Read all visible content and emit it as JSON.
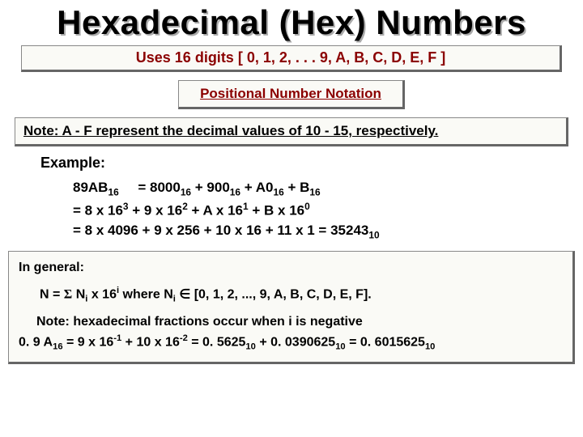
{
  "title": "Hexadecimal (Hex) Numbers",
  "uses_line": "Uses 16 digits [ 0, 1, 2, . . . 9, A, B, C, D, E, F ]",
  "positional": "Positional Number Notation",
  "note_af": "Note: A - F represent the decimal values of 10 - 15, respectively.",
  "example_label": "Example:",
  "ex": {
    "a": "89AB",
    "a_sub": "16",
    "eq": " = 8000",
    "eq_s1": "16",
    "eq2": " + 900",
    "eq_s2": "16",
    "eq3": " + A0",
    "eq_s3": "16",
    "eq4": " + B",
    "eq_s4": "16",
    "l2a": "= 8 x 16",
    "l2p1": "3",
    "l2b": " + 9 x 16",
    "l2p2": "2",
    "l2c": " + A x 16",
    "l2p3": "1",
    "l2d": " + B x 16",
    "l2p4": "0",
    "l3": "= 8 x 4096 + 9 x 256 + 10 x 16 + 11 x 1 = 35243",
    "l3s": "10"
  },
  "ingeneral": "In general:",
  "formula": {
    "a": "N = ",
    "sigma": "Σ",
    "b": " N",
    "sub_i": "i",
    "c": " x 16",
    "sup_i": "i",
    "where": "   where N",
    "elem": " ∈ [0, 1, 2, ..., 9, A, B, C, D, E, F]."
  },
  "fracnote": "Note: hexadecimal fractions occur when i is negative",
  "frac": {
    "a": "0. 9 A",
    "s1": "16",
    "b": " = 9 x 16",
    "p1": "-1",
    "c": " + 10 x 16",
    "p2": "-2",
    "d": " = 0. 5625",
    "s2": "10",
    "e": " + 0. 0390625",
    "s3": "10",
    "f": " = 0. 6015625",
    "s4": "10"
  },
  "colors": {
    "title_shadow": "#aaaaaa",
    "box_bg": "#fafaf6",
    "box_border_light": "#888888",
    "box_border_dark": "#666666",
    "accent": "#8b0000"
  }
}
